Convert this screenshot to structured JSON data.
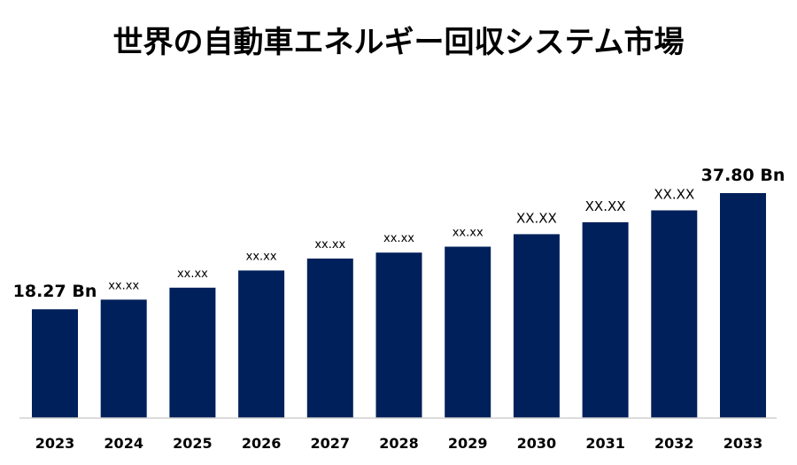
{
  "chart_data": {
    "type": "bar",
    "title": "世界の自動車エネルギー回収システム市場",
    "categories": [
      "2023",
      "2024",
      "2025",
      "2026",
      "2027",
      "2028",
      "2029",
      "2030",
      "2031",
      "2032",
      "2033"
    ],
    "values": [
      18.27,
      19.9,
      21.9,
      24.8,
      26.8,
      27.8,
      28.8,
      30.9,
      32.9,
      34.9,
      37.8
    ],
    "data_labels": [
      "18.27 Bn",
      "xx.xx",
      "xx.xx",
      "xx.xx",
      "xx.xx",
      "xx.xx",
      "xx.xx",
      "XX.XX",
      "XX.XX",
      "XX.XX",
      "37.80 Bn"
    ],
    "ylim": [
      0,
      40
    ],
    "grid": false,
    "bar_color": "#00205b"
  }
}
